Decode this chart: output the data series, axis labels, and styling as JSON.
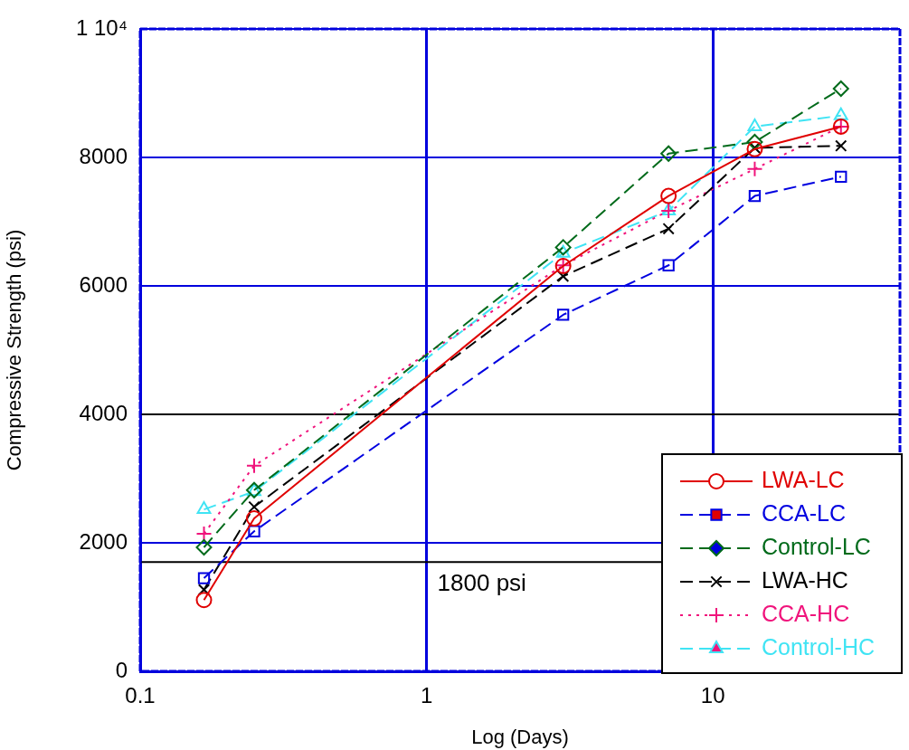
{
  "chart_data": {
    "type": "line",
    "xlabel": "Log (Days)",
    "ylabel": "Compressive Strength (psi)",
    "x": [
      0.167,
      0.25,
      3,
      7,
      14,
      28
    ],
    "series": [
      {
        "name": "LWA-LC",
        "color": "#e00000",
        "marker": "circle",
        "line_style": "solid",
        "values": [
          1110,
          2380,
          6310,
          7400,
          8130,
          8480
        ]
      },
      {
        "name": "CCA-LC",
        "color": "#0000e0",
        "marker": "square",
        "line_style": "dashed",
        "values": [
          1450,
          2180,
          5550,
          6320,
          7400,
          7700
        ]
      },
      {
        "name": "Control-LC",
        "color": "#006a1a",
        "marker": "diamond",
        "line_style": "dashed",
        "values": [
          1930,
          2820,
          6600,
          8060,
          8240,
          9070
        ]
      },
      {
        "name": "LWA-HC",
        "color": "#000000",
        "marker": "x",
        "line_style": "dashed",
        "values": [
          1270,
          2560,
          6150,
          6890,
          8150,
          8180
        ]
      },
      {
        "name": "CCA-HC",
        "color": "#f0147c",
        "marker": "cross",
        "line_style": "dotted",
        "values": [
          2140,
          3200,
          6320,
          7170,
          7820,
          8480
        ]
      },
      {
        "name": "Control-HC",
        "color": "#40e4f4",
        "marker": "triangle",
        "line_style": "dashed",
        "values": [
          2520,
          2800,
          6510,
          7170,
          8480,
          8650
        ]
      }
    ],
    "log": "x",
    "xlim": [
      0.1,
      45
    ],
    "xticks": [
      0.1,
      1,
      10
    ],
    "ylim": [
      0,
      10000
    ],
    "yticks": [
      0,
      2000,
      4000,
      6000,
      8000,
      {
        "value": 10000,
        "label": "1 10⁴"
      }
    ],
    "grid": true,
    "legend": "bottom right",
    "ref_lines": [
      {
        "axis": "y",
        "value": 4000,
        "color": "#000000"
      },
      {
        "axis": "y",
        "value": 1700,
        "label": "1800 psi",
        "color": "#000000"
      }
    ]
  }
}
